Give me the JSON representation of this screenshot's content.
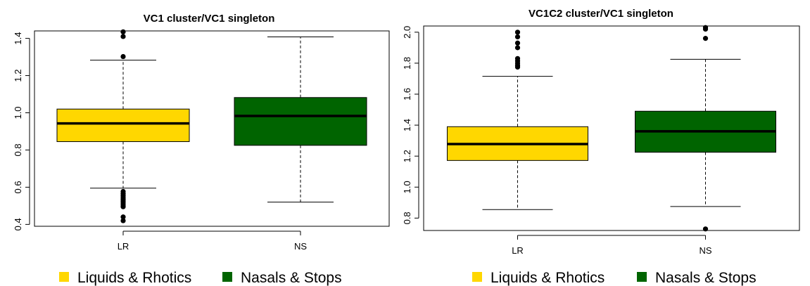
{
  "colors": {
    "lr": "#ffd700",
    "ns": "#006400",
    "ink": "#000000"
  },
  "chart_data": [
    {
      "type": "boxplot",
      "title": "VC1 cluster/VC1 singleton",
      "xlabel": "",
      "ylabel": "",
      "categories": [
        "LR",
        "NS"
      ],
      "ylim": [
        0.39,
        1.44
      ],
      "yticks": [
        "0.4",
        "0.6",
        "0.8",
        "1.0",
        "1.2",
        "1.4"
      ],
      "boxes": [
        {
          "name": "LR",
          "color": "#ffd700",
          "whisker_low": 0.595,
          "q1": 0.845,
          "median": 0.943,
          "q3": 1.02,
          "whisker_high": 1.283,
          "outliers": [
            1.435,
            1.41,
            1.302,
            0.577,
            0.565,
            0.555,
            0.545,
            0.535,
            0.525,
            0.515,
            0.505,
            0.495,
            0.44,
            0.42
          ]
        },
        {
          "name": "NS",
          "color": "#006400",
          "whisker_low": 0.52,
          "q1": 0.825,
          "median": 0.983,
          "q3": 1.082,
          "whisker_high": 1.408,
          "outliers": []
        }
      ]
    },
    {
      "type": "boxplot",
      "title": "VC1C2 cluster/VC1 singleton",
      "xlabel": "",
      "ylabel": "",
      "categories": [
        "LR",
        "NS"
      ],
      "ylim": [
        0.72,
        2.04
      ],
      "yticks": [
        "0.8",
        "1.0",
        "1.2",
        "1.4",
        "1.6",
        "1.8",
        "2.0"
      ],
      "boxes": [
        {
          "name": "LR",
          "color": "#ffd700",
          "whisker_low": 0.855,
          "q1": 1.172,
          "median": 1.278,
          "q3": 1.39,
          "whisker_high": 1.715,
          "outliers": [
            2.0,
            1.97,
            1.93,
            1.9,
            1.83,
            1.815,
            1.8,
            1.785,
            1.775
          ]
        },
        {
          "name": "NS",
          "color": "#006400",
          "whisker_low": 0.875,
          "q1": 1.225,
          "median": 1.36,
          "q3": 1.49,
          "whisker_high": 1.825,
          "outliers": [
            2.03,
            2.02,
            1.96,
            0.73
          ]
        }
      ]
    }
  ],
  "legend": [
    {
      "label": "Liquids & Rhotics",
      "color": "#ffd700"
    },
    {
      "label": "Nasals & Stops",
      "color": "#006400"
    }
  ]
}
